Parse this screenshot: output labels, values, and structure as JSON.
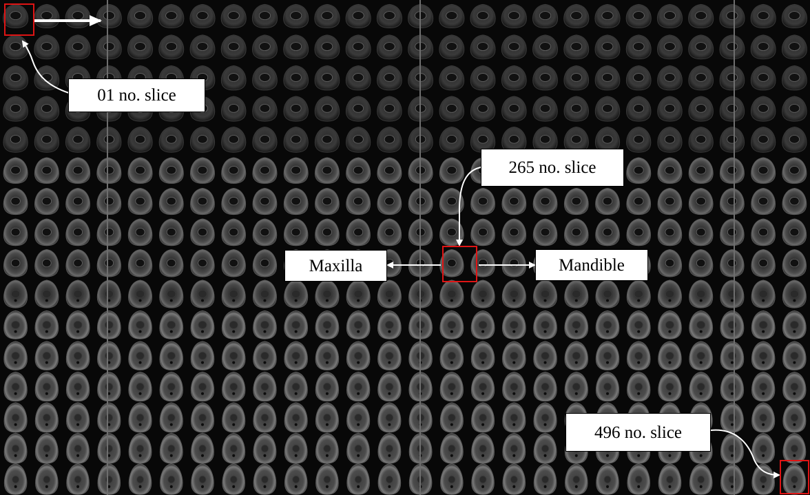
{
  "montage": {
    "rows": 16,
    "columns": 26,
    "background_color": "#080808",
    "separator_color": "#6e6e6e",
    "highlight_color": "#e01414"
  },
  "labels": {
    "first_slice": "01 no. slice",
    "middle_slice": "265 no. slice",
    "last_slice": "496 no. slice",
    "left_region": "Maxilla",
    "right_region": "Mandible"
  },
  "arrow_color": "#ffffff"
}
